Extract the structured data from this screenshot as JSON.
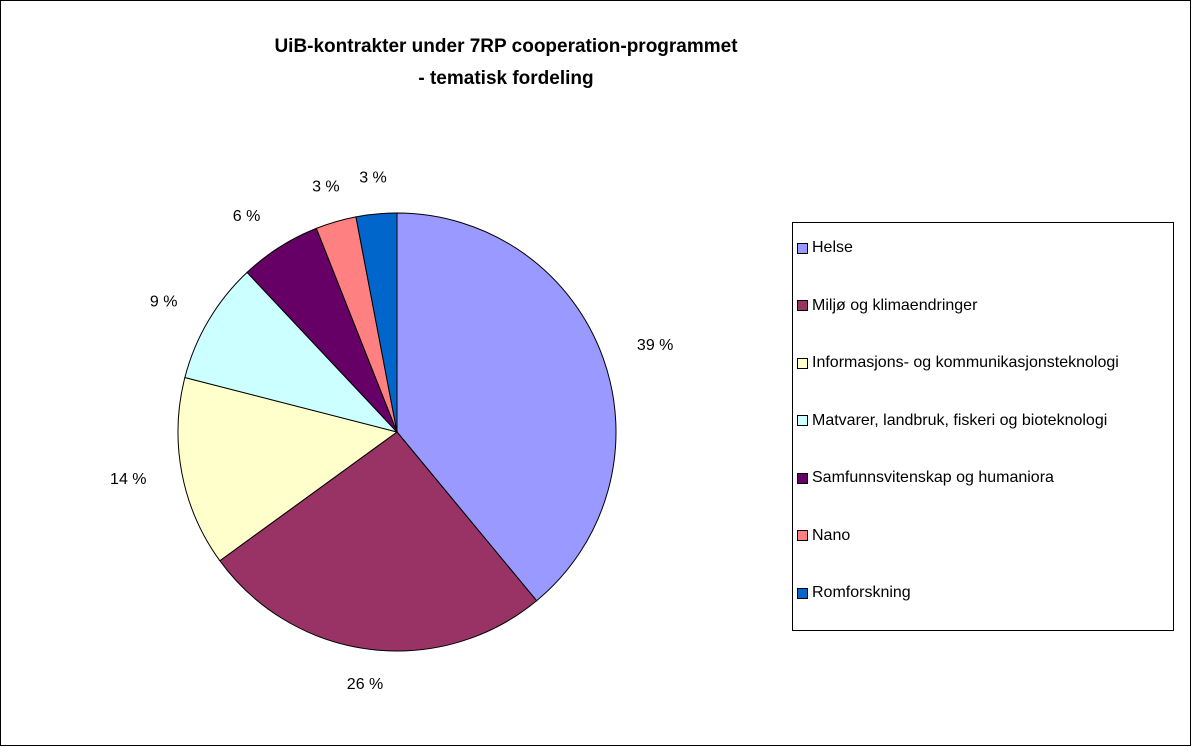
{
  "chart_data": {
    "type": "pie",
    "title": [
      "UiB-kontrakter under 7RP cooperation-programmet",
      "- tematisk fordeling"
    ],
    "categories": [
      "Helse",
      "Miljø og klimaendringer",
      "Informasjons- og kommunikasjonsteknologi",
      "Matvarer, landbruk, fiskeri og bioteknologi",
      "Samfunnsvitenskap og humaniora",
      "Nano",
      "Romforskning"
    ],
    "values": [
      39,
      26,
      14,
      9,
      6,
      3,
      3
    ],
    "value_labels": [
      "39 %",
      "26 %",
      "14 %",
      "9 %",
      "6 %",
      "3 %",
      "3 %"
    ],
    "colors": [
      "#9999ff",
      "#993366",
      "#ffffcc",
      "#ccffff",
      "#660066",
      "#ff8080",
      "#0066cc"
    ],
    "legend": "right"
  }
}
